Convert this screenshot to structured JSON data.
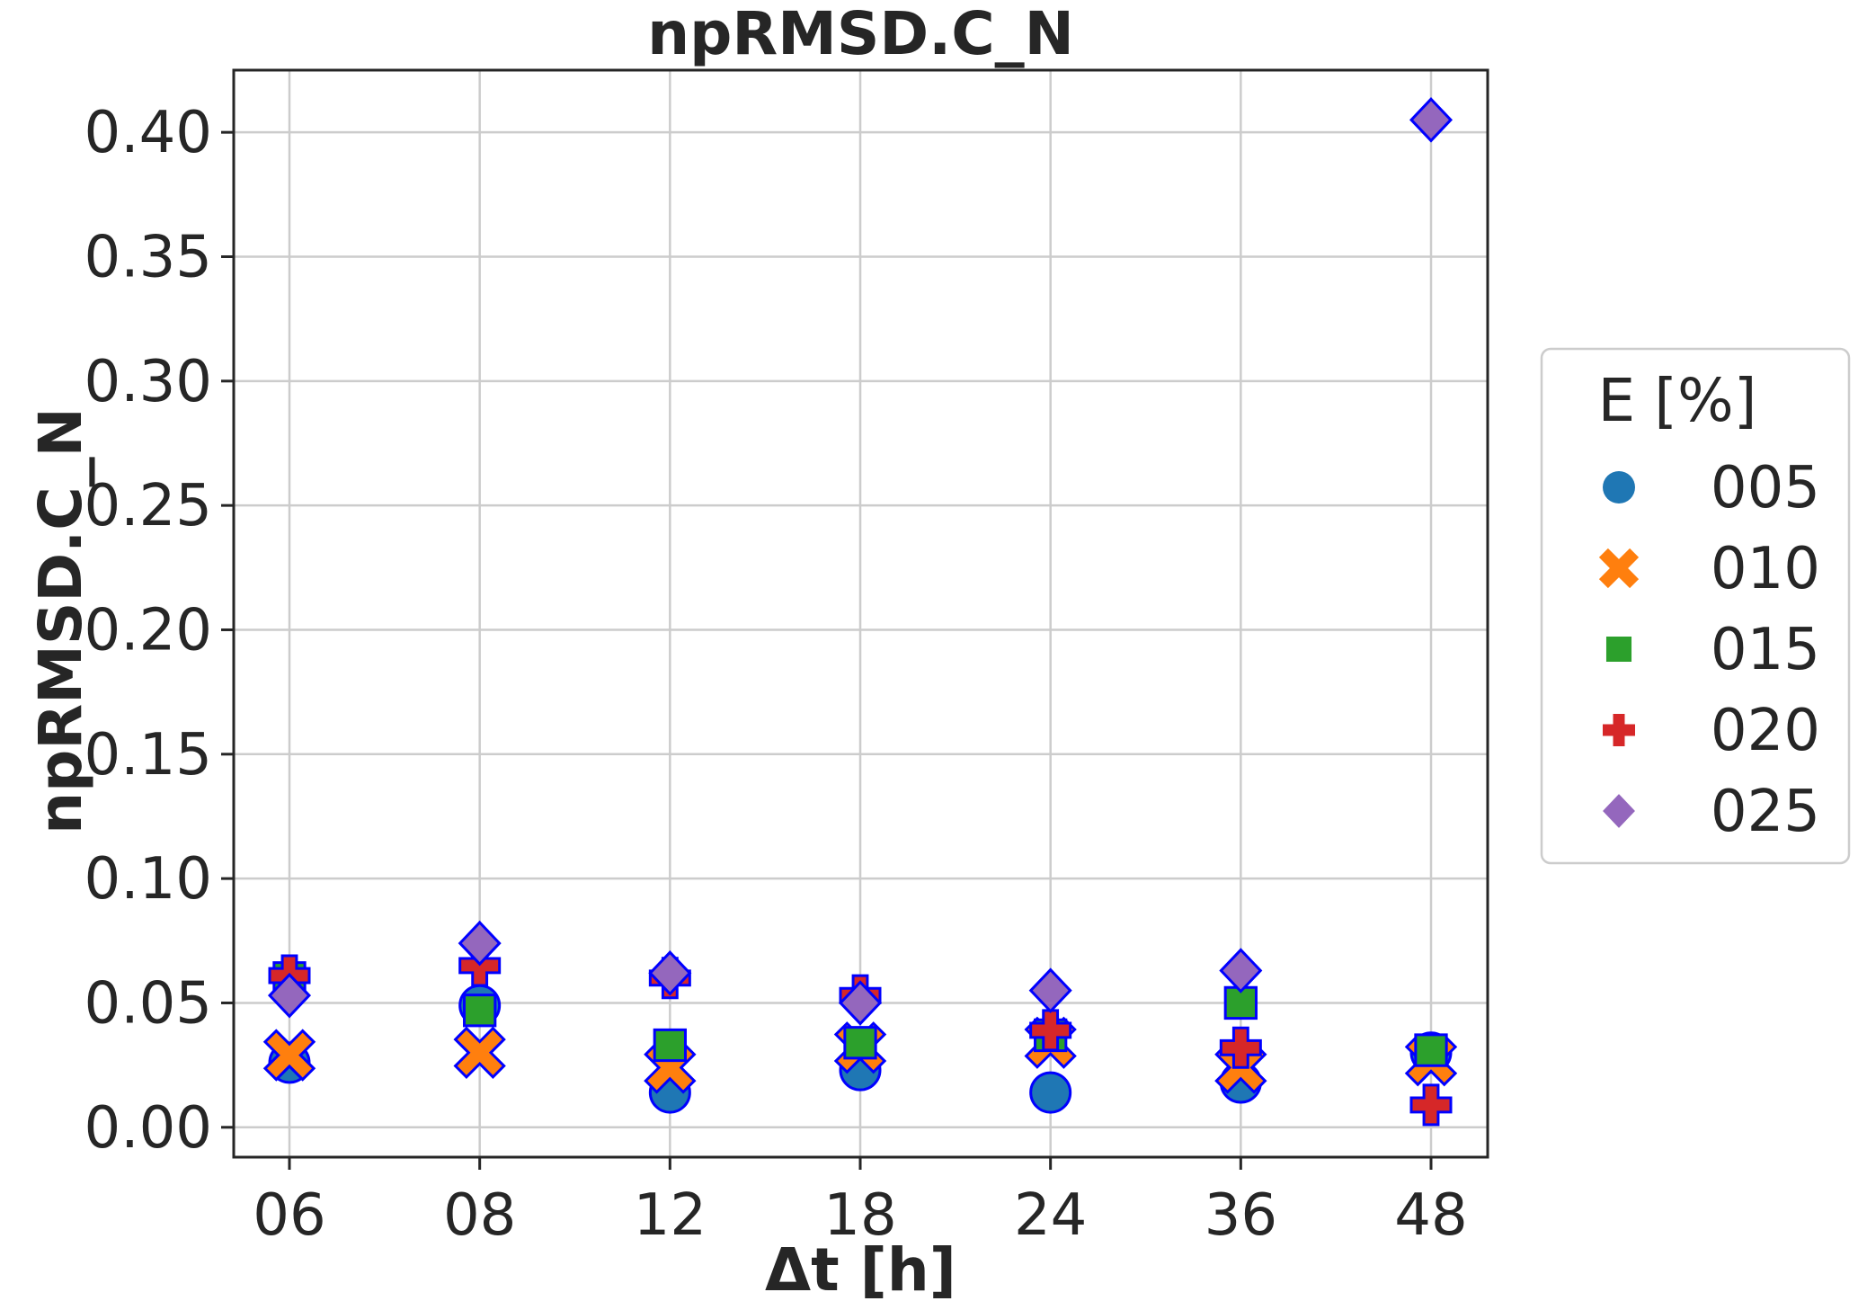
{
  "chart_data": {
    "type": "scatter",
    "title": "npRMSD.C_N",
    "xlabel": "Δt [h]",
    "ylabel": "npRMSD.C_N",
    "categories": [
      "06",
      "08",
      "12",
      "18",
      "24",
      "36",
      "48"
    ],
    "ylim": [
      -0.012,
      0.425
    ],
    "yticks": [
      0.0,
      0.05,
      0.1,
      0.15,
      0.2,
      0.25,
      0.3,
      0.35,
      0.4
    ],
    "ytick_labels": [
      "0.00",
      "0.05",
      "0.10",
      "0.15",
      "0.20",
      "0.25",
      "0.30",
      "0.35",
      "0.40"
    ],
    "grid": true,
    "legend": {
      "title": "E [%]",
      "placement": "center-right-outside"
    },
    "series": [
      {
        "name": "005",
        "marker": "circle",
        "color": "#1f77b4",
        "values": [
          0.026,
          0.049,
          0.014,
          0.023,
          0.014,
          0.018,
          0.03
        ]
      },
      {
        "name": "010",
        "marker": "x",
        "color": "#ff7f0e",
        "values": [
          0.029,
          0.03,
          0.024,
          0.032,
          0.034,
          0.024,
          0.027
        ]
      },
      {
        "name": "015",
        "marker": "square",
        "color": "#2ca02c",
        "values": [
          0.06,
          0.047,
          0.033,
          0.034,
          0.037,
          0.05,
          0.031
        ]
      },
      {
        "name": "020",
        "marker": "plus",
        "color": "#d62728",
        "values": [
          0.061,
          0.065,
          0.06,
          0.053,
          0.039,
          0.032,
          0.009
        ]
      },
      {
        "name": "025",
        "marker": "diamond",
        "color": "#9467bd",
        "values": [
          0.053,
          0.074,
          0.062,
          0.05,
          0.055,
          0.063,
          0.405
        ]
      }
    ],
    "marker_edge_color": "#0000ff"
  }
}
